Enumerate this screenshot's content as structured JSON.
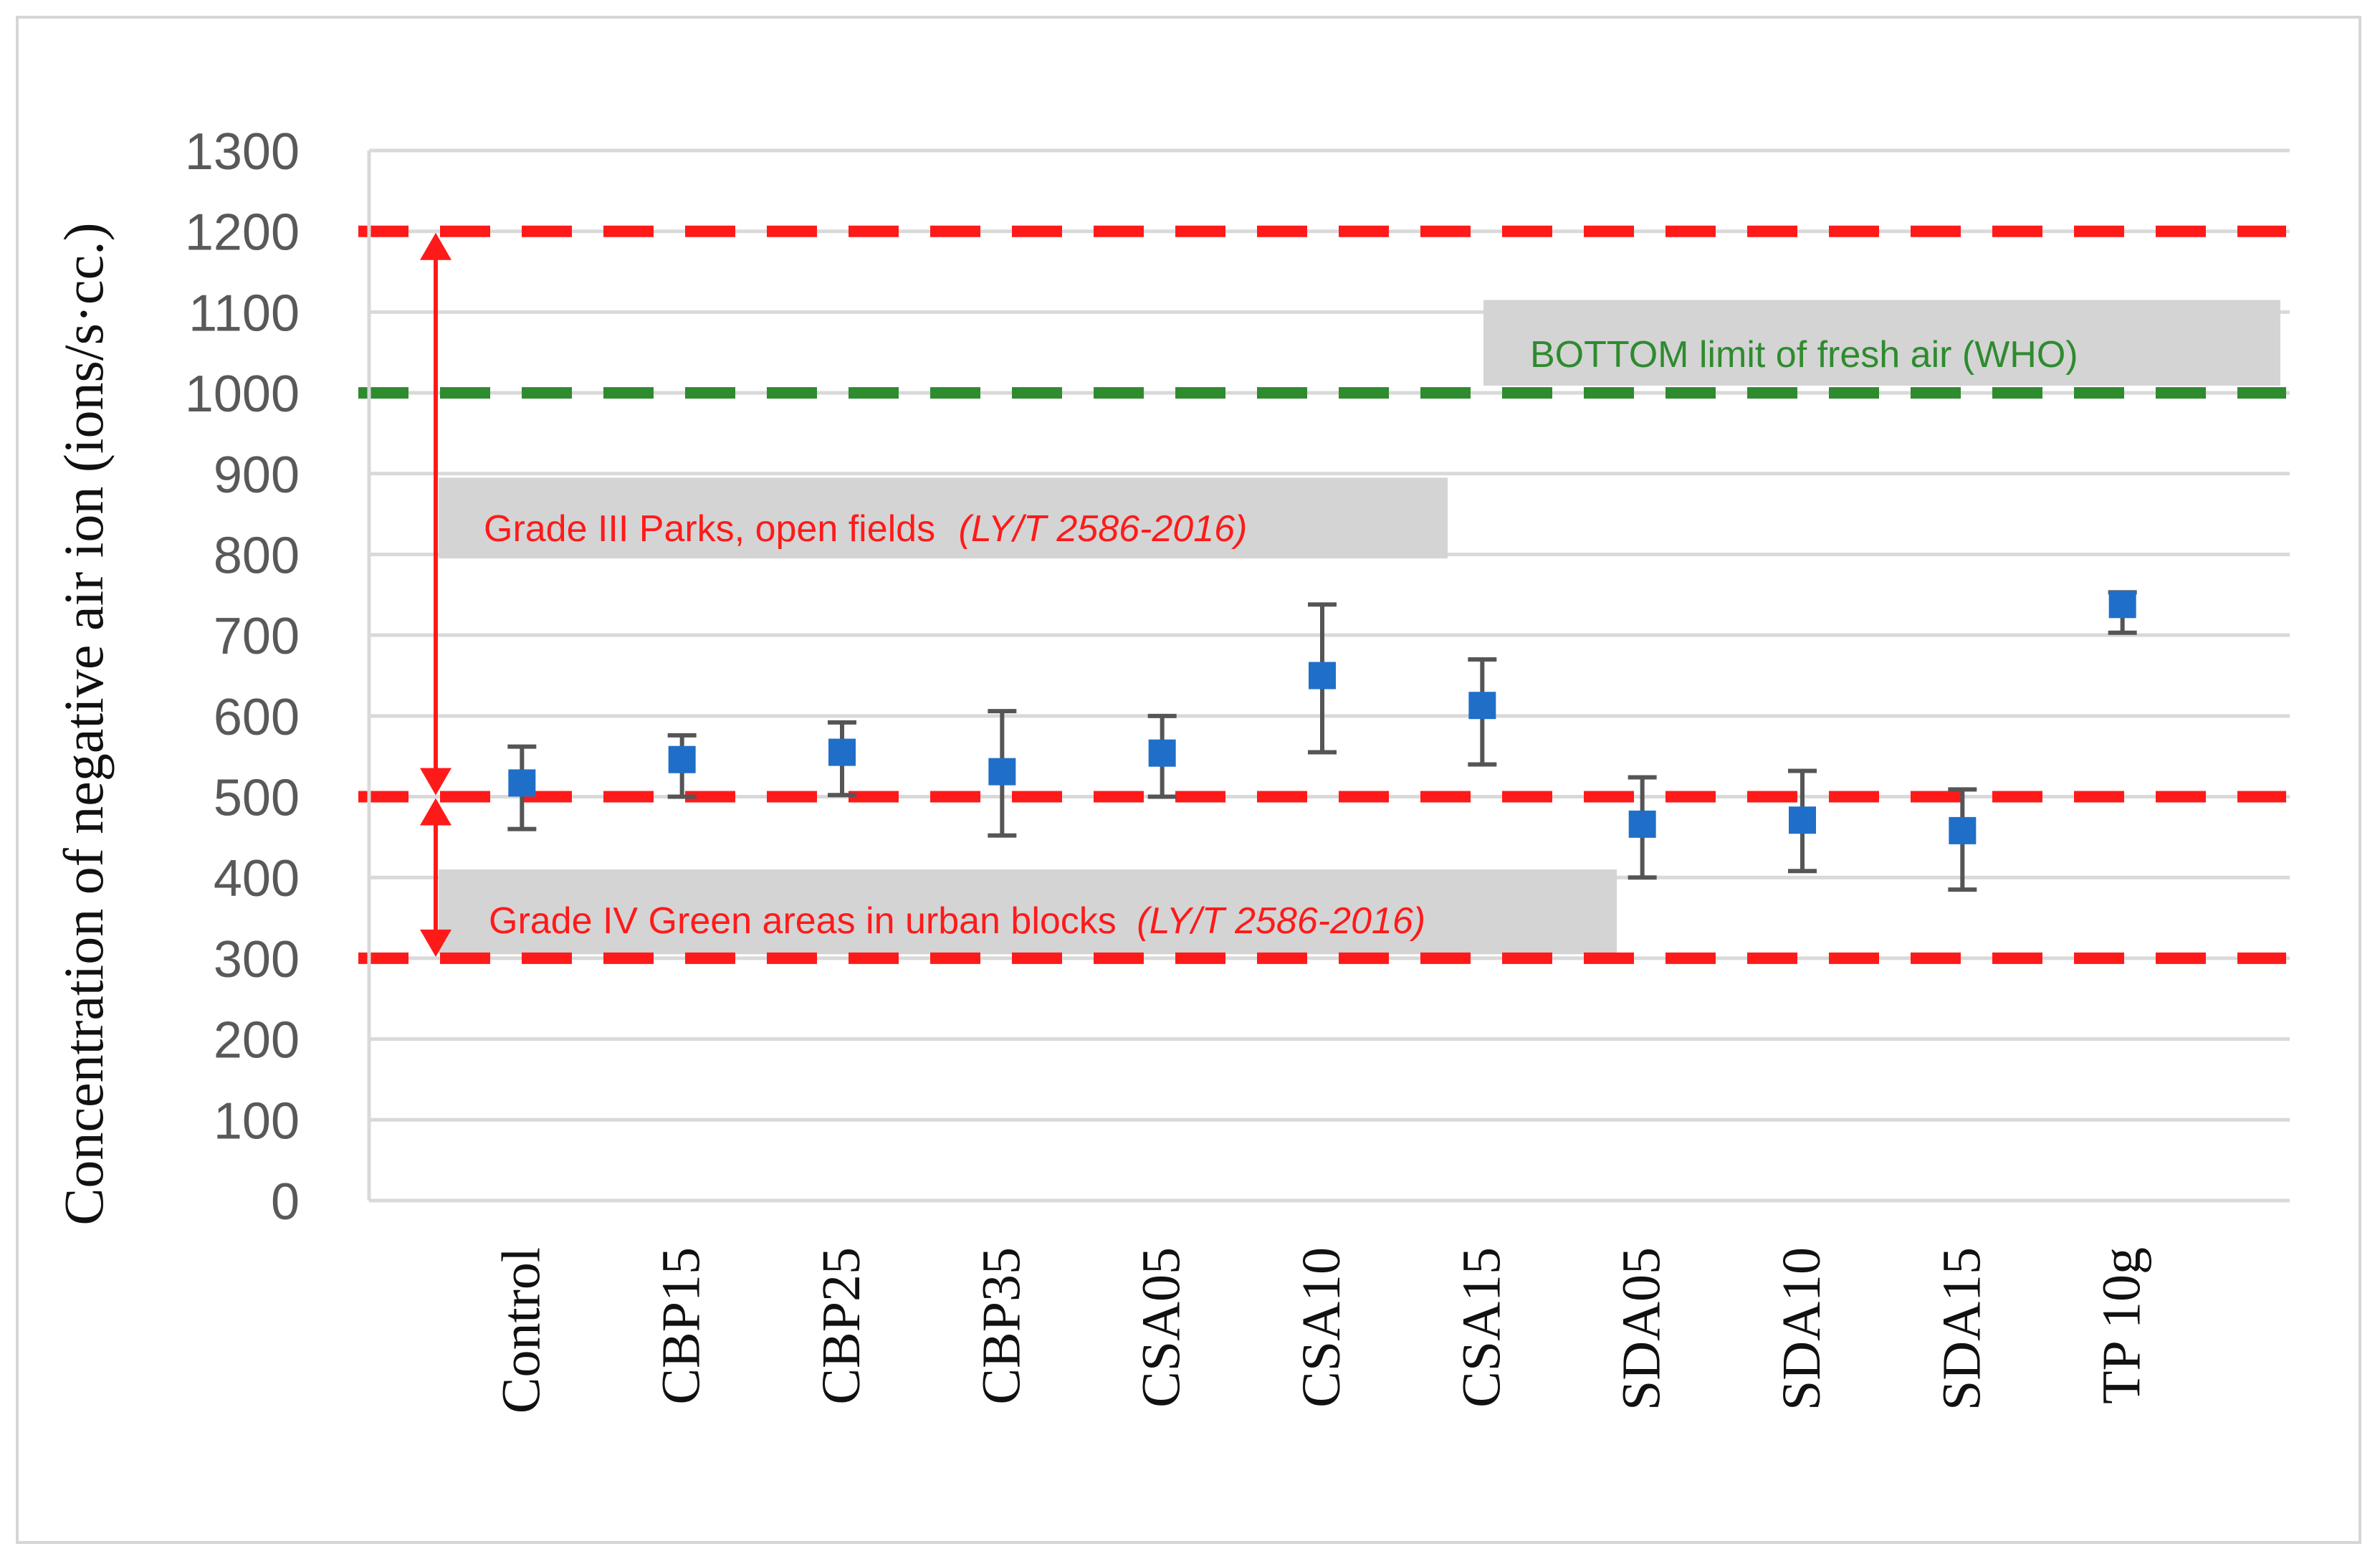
{
  "chart_data": {
    "type": "scatter",
    "ylabel": "Concentration of negative air ion (ions/s·cc.)",
    "ylim": [
      0,
      1300
    ],
    "ytick_step": 100,
    "grid": true,
    "categories": [
      "Control",
      "CBP15",
      "CBP25",
      "CBP35",
      "CSA05",
      "CSA10",
      "CSA15",
      "SDA05",
      "SDA10",
      "SDA15",
      "TP 10g"
    ],
    "series": [
      {
        "values": [
          517,
          546,
          555,
          531,
          554,
          650,
          613,
          466,
          471,
          458,
          738
        ],
        "error_low": [
          460,
          500,
          502,
          452,
          500,
          555,
          540,
          400,
          408,
          385,
          703
        ],
        "error_high": [
          562,
          576,
          592,
          606,
          600,
          738,
          670,
          524,
          532,
          509,
          753
        ],
        "color": "#1f6fc9"
      }
    ],
    "reference_lines": [
      {
        "y": 1200,
        "color": "#ff1a1a"
      },
      {
        "y": 1000,
        "color": "#2e8b2e"
      },
      {
        "y": 500,
        "color": "#ff1a1a"
      },
      {
        "y": 300,
        "color": "#ff1a1a"
      }
    ],
    "annotations": [
      {
        "text": "BOTTOM limit of fresh air (WHO)",
        "color": "#2e8b2e"
      },
      {
        "text": "Grade III Parks, open fields",
        "italic_text": "(LY/T 2586-2016)",
        "color": "#ff1a1a"
      },
      {
        "text": "Grade IV  Green areas in urban blocks",
        "italic_text": "(LY/T 2586-2016)",
        "color": "#ff1a1a"
      }
    ]
  }
}
